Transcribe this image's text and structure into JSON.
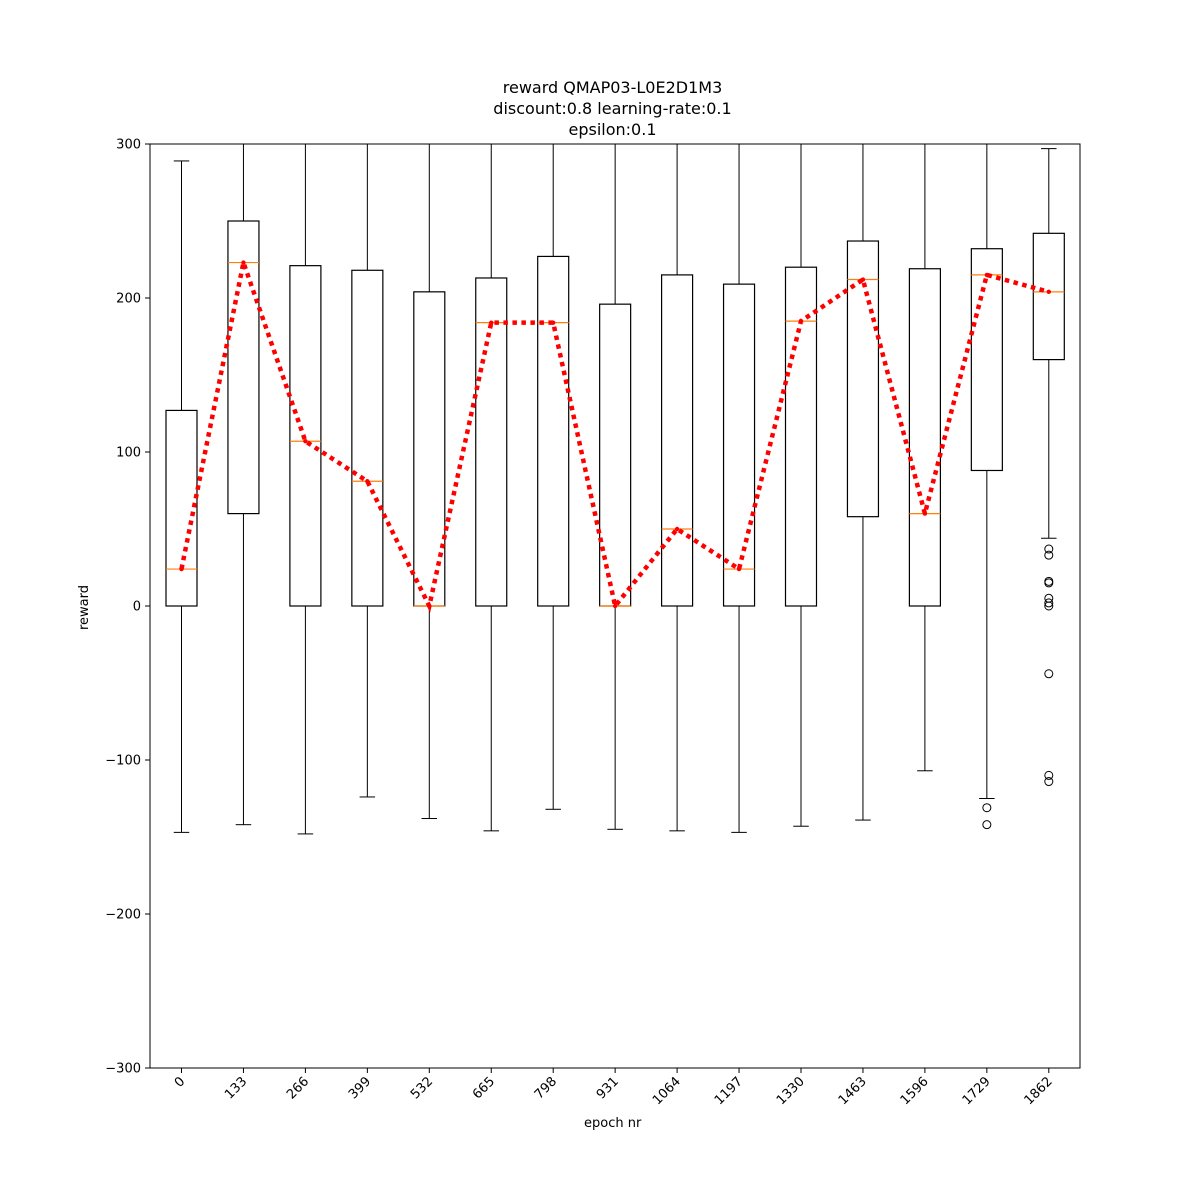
{
  "chart_data": {
    "type": "box",
    "title": [
      "reward QMAP03-L0E2D1M3",
      "discount:0.8 learning-rate:0.1",
      "epsilon:0.1"
    ],
    "xlabel": "epoch nr",
    "ylabel": "reward",
    "ylim": [
      -300,
      300
    ],
    "yticks": [
      -300,
      -200,
      -100,
      0,
      100,
      200,
      300
    ],
    "ytick_labels": [
      "−300",
      "−200",
      "−100",
      "0",
      "100",
      "200",
      "300"
    ],
    "categories": [
      "0",
      "133",
      "266",
      "399",
      "532",
      "665",
      "798",
      "931",
      "1064",
      "1197",
      "1330",
      "1463",
      "1596",
      "1729",
      "1862"
    ],
    "boxes": [
      {
        "whislo": -147,
        "q1": 0,
        "med": 24,
        "q3": 127,
        "whishi": 289,
        "fliers": []
      },
      {
        "whislo": -142,
        "q1": 60,
        "med": 223,
        "q3": 250,
        "whishi": 300,
        "fliers": []
      },
      {
        "whislo": -148,
        "q1": 0,
        "med": 107,
        "q3": 221,
        "whishi": 300,
        "fliers": []
      },
      {
        "whislo": -124,
        "q1": 0,
        "med": 81,
        "q3": 218,
        "whishi": 300,
        "fliers": []
      },
      {
        "whislo": -138,
        "q1": 0,
        "med": 0,
        "q3": 204,
        "whishi": 300,
        "fliers": []
      },
      {
        "whislo": -146,
        "q1": 0,
        "med": 184,
        "q3": 213,
        "whishi": 300,
        "fliers": []
      },
      {
        "whislo": -132,
        "q1": 0,
        "med": 184,
        "q3": 227,
        "whishi": 300,
        "fliers": []
      },
      {
        "whislo": -145,
        "q1": 0,
        "med": 0,
        "q3": 196,
        "whishi": 300,
        "fliers": []
      },
      {
        "whislo": -146,
        "q1": 0,
        "med": 50,
        "q3": 215,
        "whishi": 300,
        "fliers": []
      },
      {
        "whislo": -147,
        "q1": 0,
        "med": 24,
        "q3": 209,
        "whishi": 300,
        "fliers": []
      },
      {
        "whislo": -143,
        "q1": 0,
        "med": 185,
        "q3": 220,
        "whishi": 300,
        "fliers": []
      },
      {
        "whislo": -139,
        "q1": 58,
        "med": 212,
        "q3": 237,
        "whishi": 300,
        "fliers": []
      },
      {
        "whislo": -107,
        "q1": 0,
        "med": 60,
        "q3": 219,
        "whishi": 300,
        "fliers": []
      },
      {
        "whislo": -125,
        "q1": 88,
        "med": 215,
        "q3": 232,
        "whishi": 300,
        "fliers": [
          -131,
          -142
        ]
      },
      {
        "whislo": 44,
        "q1": 160,
        "med": 204,
        "q3": 242,
        "whishi": 297,
        "fliers": [
          37,
          33,
          16,
          15,
          5,
          2,
          0,
          -44,
          -110,
          -114
        ]
      }
    ],
    "series": [
      {
        "values": [
          24,
          223,
          107,
          81,
          0,
          184,
          184,
          0,
          50,
          24,
          185,
          212,
          60,
          215,
          204
        ],
        "color": "#ff0000",
        "style": "dotted"
      }
    ],
    "colors": {
      "median": "#ff7f0e",
      "line": "#ff0000",
      "box": "#000000"
    },
    "grid": false
  }
}
